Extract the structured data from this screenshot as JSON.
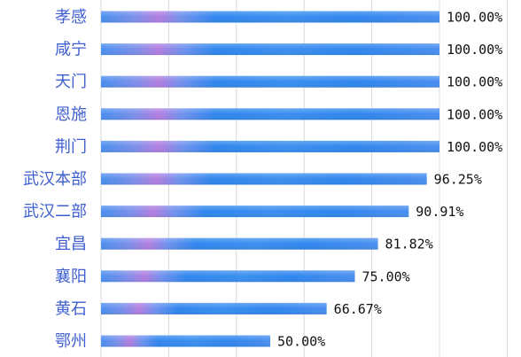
{
  "chart_data": {
    "type": "bar",
    "orientation": "horizontal",
    "title": "",
    "xlabel": "",
    "ylabel": "",
    "categories": [
      "孝感",
      "咸宁",
      "天门",
      "恩施",
      "荆门",
      "武汉本部",
      "武汉二部",
      "宜昌",
      "襄阳",
      "黄石",
      "鄂州"
    ],
    "values": [
      100.0,
      100.0,
      100.0,
      100.0,
      100.0,
      96.25,
      90.91,
      81.82,
      75.0,
      66.67,
      50.0
    ],
    "data_labels": [
      "100.00%",
      "100.00%",
      "100.00%",
      "100.00%",
      "100.00%",
      "96.25%",
      "90.91%",
      "81.82%",
      "75.00%",
      "66.67%",
      "50.00%"
    ],
    "xlim": [
      0,
      100
    ],
    "grid": true,
    "legend": "none",
    "colors": {
      "bar_main": "#2f86ee",
      "bar_light": "#4ea6ff",
      "bar_accent": "#b37ee0",
      "category_text": "#3f5fd0",
      "value_text": "#111111",
      "grid": "#d9d9d9"
    }
  }
}
